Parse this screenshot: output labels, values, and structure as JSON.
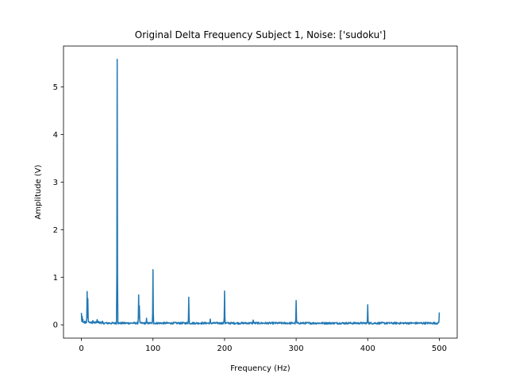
{
  "chart_data": {
    "type": "line",
    "title": "Original Delta Frequency Subject 1, Noise: ['sudoku']",
    "xlabel": "Frequency (Hz)",
    "ylabel": "Amplitude (V)",
    "xlim": [
      -25,
      525
    ],
    "ylim": [
      -0.28,
      5.86
    ],
    "xticks": [
      0,
      100,
      200,
      300,
      400,
      500
    ],
    "yticks": [
      0,
      1,
      2,
      3,
      4,
      5
    ],
    "grid": false,
    "color": "#1f77b4",
    "baseline": 0.035,
    "peaks": [
      {
        "x": 0,
        "y": 0.25
      },
      {
        "x": 1,
        "y": 0.18
      },
      {
        "x": 2,
        "y": 0.12
      },
      {
        "x": 8,
        "y": 0.7
      },
      {
        "x": 9,
        "y": 0.55
      },
      {
        "x": 16,
        "y": 0.09
      },
      {
        "x": 22,
        "y": 0.11
      },
      {
        "x": 50,
        "y": 5.58
      },
      {
        "x": 80,
        "y": 0.63
      },
      {
        "x": 81,
        "y": 0.4
      },
      {
        "x": 91,
        "y": 0.14
      },
      {
        "x": 100,
        "y": 1.16
      },
      {
        "x": 150,
        "y": 0.58
      },
      {
        "x": 180,
        "y": 0.12
      },
      {
        "x": 200,
        "y": 0.71
      },
      {
        "x": 240,
        "y": 0.1
      },
      {
        "x": 300,
        "y": 0.51
      },
      {
        "x": 400,
        "y": 0.42
      },
      {
        "x": 500,
        "y": 0.26
      }
    ]
  }
}
